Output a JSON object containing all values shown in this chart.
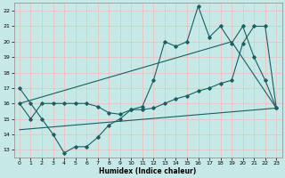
{
  "xlabel": "Humidex (Indice chaleur)",
  "bg_color": "#c6e8e6",
  "grid_color": "#e8c8c8",
  "line_color": "#1a6060",
  "xlim": [
    -0.5,
    23.5
  ],
  "ylim": [
    12.5,
    22.5
  ],
  "yticks": [
    13,
    14,
    15,
    16,
    17,
    18,
    19,
    20,
    21,
    22
  ],
  "xticks": [
    0,
    1,
    2,
    3,
    4,
    5,
    6,
    7,
    8,
    9,
    10,
    11,
    12,
    13,
    14,
    15,
    16,
    17,
    18,
    19,
    20,
    21,
    22,
    23
  ],
  "line1_x": [
    0,
    1,
    2,
    3,
    4,
    5,
    6,
    7,
    8,
    9,
    10,
    11,
    12,
    13,
    14,
    15,
    16,
    17,
    18,
    19,
    20,
    21,
    22,
    23
  ],
  "line1_y": [
    17.0,
    16.0,
    15.0,
    14.0,
    12.8,
    13.2,
    13.2,
    13.8,
    14.6,
    15.0,
    15.6,
    15.8,
    17.5,
    20.0,
    19.7,
    20.0,
    22.3,
    20.3,
    21.0,
    19.9,
    21.0,
    19.0,
    17.5,
    15.7
  ],
  "line2_x": [
    0,
    1,
    2,
    3,
    4,
    5,
    6,
    7,
    8,
    9,
    10,
    11,
    12,
    13,
    14,
    15,
    16,
    17,
    18,
    19,
    20,
    21,
    22,
    23
  ],
  "line2_y": [
    16.0,
    15.0,
    16.0,
    16.0,
    16.0,
    16.0,
    16.0,
    15.8,
    15.4,
    15.3,
    15.6,
    15.6,
    15.7,
    16.0,
    16.3,
    16.5,
    16.8,
    17.0,
    17.3,
    17.5,
    19.9,
    21.0,
    21.0,
    15.7
  ],
  "line3_x": [
    0,
    19
  ],
  "line3_y": [
    16.0,
    20.0
  ],
  "line4_x": [
    0,
    23
  ],
  "line4_y": [
    14.3,
    15.7
  ],
  "line5_x": [
    19,
    23
  ],
  "line5_y": [
    20.0,
    15.7
  ]
}
